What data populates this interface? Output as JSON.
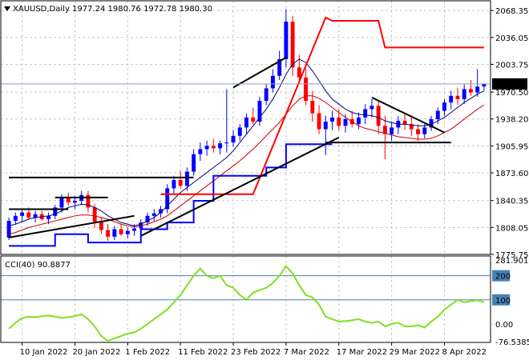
{
  "header": {
    "symbol": "XAUUSD,Daily",
    "ohlc": "1977.24 1980.76 1972.78 1980.30"
  },
  "colors": {
    "background": "#ffffff",
    "grid": "#c8c8c8",
    "bull": "#0000ff",
    "bear": "#ff0000",
    "ma_fast": "#000080",
    "ma_slow": "#cc0000",
    "blue_step": "#0000ff",
    "red_step": "#ff0000",
    "trendline": "#000000",
    "cci_line": "#80e020",
    "cci_levels": "#4682b4",
    "last_price_box": "#000000"
  },
  "chart_data": [
    {
      "type": "candlestick",
      "title": "XAUUSD,Daily",
      "ylim": [
        1775.75,
        2080
      ],
      "price_ticks": [
        "2068.35",
        "2036.05",
        "2003.75",
        "1970.50",
        "1938.20",
        "1905.95",
        "1873.60",
        "1840.35",
        "1808.05",
        "1775.75"
      ],
      "last_price": "1980.30",
      "x_tick_labels": [
        "10 Jan 2022",
        "20 Jan 2022",
        "1 Feb 2022",
        "11 Feb 2022",
        "23 Feb 2022",
        "7 Mar 2022",
        "17 Mar 2022",
        "29 Mar 2022",
        "8 Apr 2022"
      ],
      "x_tick_index": [
        2,
        10,
        18,
        26,
        34,
        42,
        50,
        58,
        66
      ],
      "candles": [
        [
          1796,
          1820,
          1793,
          1816
        ],
        [
          1816,
          1826,
          1812,
          1822
        ],
        [
          1822,
          1830,
          1815,
          1826
        ],
        [
          1826,
          1832,
          1818,
          1820
        ],
        [
          1820,
          1828,
          1814,
          1824
        ],
        [
          1824,
          1828,
          1816,
          1818
        ],
        [
          1818,
          1826,
          1812,
          1822
        ],
        [
          1822,
          1835,
          1818,
          1832
        ],
        [
          1832,
          1848,
          1826,
          1843
        ],
        [
          1843,
          1850,
          1834,
          1838
        ],
        [
          1838,
          1846,
          1830,
          1840
        ],
        [
          1840,
          1852,
          1835,
          1847
        ],
        [
          1847,
          1852,
          1826,
          1832
        ],
        [
          1832,
          1836,
          1808,
          1815
        ],
        [
          1815,
          1820,
          1800,
          1805
        ],
        [
          1805,
          1812,
          1792,
          1797
        ],
        [
          1797,
          1810,
          1793,
          1806
        ],
        [
          1806,
          1812,
          1798,
          1800
        ],
        [
          1800,
          1808,
          1795,
          1804
        ],
        [
          1804,
          1812,
          1798,
          1807
        ],
        [
          1807,
          1818,
          1803,
          1814
        ],
        [
          1814,
          1826,
          1810,
          1822
        ],
        [
          1822,
          1830,
          1816,
          1825
        ],
        [
          1825,
          1834,
          1820,
          1830
        ],
        [
          1830,
          1860,
          1825,
          1855
        ],
        [
          1855,
          1870,
          1848,
          1865
        ],
        [
          1865,
          1876,
          1855,
          1858
        ],
        [
          1858,
          1880,
          1852,
          1875
        ],
        [
          1875,
          1902,
          1870,
          1896
        ],
        [
          1896,
          1910,
          1888,
          1902
        ],
        [
          1902,
          1912,
          1894,
          1906
        ],
        [
          1906,
          1914,
          1898,
          1903
        ],
        [
          1903,
          1912,
          1896,
          1909
        ],
        [
          1909,
          1974,
          1898,
          1910
        ],
        [
          1910,
          1925,
          1905,
          1918
        ],
        [
          1918,
          1932,
          1912,
          1928
        ],
        [
          1928,
          1945,
          1920,
          1940
        ],
        [
          1940,
          1952,
          1932,
          1935
        ],
        [
          1935,
          1965,
          1930,
          1960
        ],
        [
          1960,
          1980,
          1955,
          1975
        ],
        [
          1975,
          1998,
          1970,
          1990
        ],
        [
          1990,
          2020,
          1985,
          2010
        ],
        [
          2010,
          2070,
          2000,
          2055
        ],
        [
          2055,
          2062,
          1990,
          2000
        ],
        [
          2000,
          2015,
          1980,
          1988
        ],
        [
          1988,
          1998,
          1955,
          1960
        ],
        [
          1960,
          1972,
          1935,
          1945
        ],
        [
          1945,
          1955,
          1920,
          1926
        ],
        [
          1926,
          1942,
          1895,
          1935
        ],
        [
          1935,
          1948,
          1925,
          1940
        ],
        [
          1940,
          1950,
          1925,
          1930
        ],
        [
          1930,
          1944,
          1922,
          1938
        ],
        [
          1938,
          1948,
          1928,
          1932
        ],
        [
          1932,
          1946,
          1926,
          1940
        ],
        [
          1940,
          1956,
          1932,
          1950
        ],
        [
          1950,
          1962,
          1940,
          1954
        ],
        [
          1954,
          1960,
          1920,
          1930
        ],
        [
          1930,
          1942,
          1890,
          1920
        ],
        [
          1920,
          1935,
          1912,
          1928
        ],
        [
          1928,
          1942,
          1920,
          1936
        ],
        [
          1936,
          1946,
          1925,
          1932
        ],
        [
          1932,
          1940,
          1918,
          1926
        ],
        [
          1926,
          1932,
          1912,
          1920
        ],
        [
          1920,
          1932,
          1915,
          1928
        ],
        [
          1928,
          1942,
          1924,
          1938
        ],
        [
          1938,
          1952,
          1932,
          1948
        ],
        [
          1948,
          1962,
          1942,
          1958
        ],
        [
          1958,
          1972,
          1950,
          1966
        ],
        [
          1966,
          1976,
          1955,
          1962
        ],
        [
          1962,
          1980,
          1956,
          1974
        ],
        [
          1974,
          1985,
          1966,
          1970
        ],
        [
          1970,
          1998,
          1965,
          1977
        ],
        [
          1977.24,
          1980.76,
          1972.78,
          1980.3
        ]
      ],
      "ma_fast": [
        1810,
        1812,
        1815,
        1818,
        1820,
        1821,
        1822,
        1824,
        1828,
        1832,
        1834,
        1836,
        1835,
        1832,
        1828,
        1822,
        1818,
        1814,
        1812,
        1810,
        1812,
        1816,
        1820,
        1826,
        1834,
        1842,
        1850,
        1856,
        1862,
        1868,
        1874,
        1880,
        1886,
        1892,
        1900,
        1910,
        1920,
        1930,
        1940,
        1950,
        1962,
        1976,
        1992,
        2004,
        2010,
        2006,
        1996,
        1984,
        1972,
        1962,
        1956,
        1950,
        1946,
        1944,
        1943,
        1942,
        1940,
        1936,
        1934,
        1932,
        1932,
        1931,
        1930,
        1930,
        1932,
        1936,
        1940,
        1946,
        1952,
        1958,
        1963,
        1968,
        1972
      ],
      "ma_slow": [
        1800,
        1802,
        1805,
        1808,
        1810,
        1812,
        1814,
        1816,
        1818,
        1820,
        1822,
        1823,
        1823,
        1822,
        1820,
        1818,
        1815,
        1812,
        1810,
        1809,
        1810,
        1812,
        1815,
        1818,
        1822,
        1828,
        1834,
        1840,
        1846,
        1852,
        1858,
        1864,
        1870,
        1876,
        1882,
        1888,
        1895,
        1902,
        1910,
        1918,
        1926,
        1934,
        1944,
        1954,
        1962,
        1966,
        1966,
        1963,
        1958,
        1952,
        1946,
        1940,
        1935,
        1930,
        1927,
        1925,
        1923,
        1921,
        1919,
        1917,
        1916,
        1915,
        1914,
        1914,
        1915,
        1918,
        1922,
        1926,
        1932,
        1938,
        1944,
        1950,
        1955
      ],
      "blue_step": [
        [
          0,
          1786
        ],
        [
          7,
          1786
        ],
        [
          7,
          1800
        ],
        [
          12,
          1800
        ],
        [
          12,
          1790
        ],
        [
          20,
          1790
        ],
        [
          20,
          1806
        ],
        [
          24,
          1806
        ],
        [
          24,
          1814
        ],
        [
          28,
          1814
        ],
        [
          28,
          1840
        ],
        [
          31,
          1840
        ],
        [
          31,
          1870
        ],
        [
          39,
          1870
        ],
        [
          39,
          1880
        ],
        [
          42,
          1880
        ],
        [
          42,
          1908
        ],
        [
          49,
          1908
        ]
      ],
      "red_step": [
        [
          23,
          1848
        ],
        [
          37,
          1848
        ],
        [
          48,
          2060
        ],
        [
          49,
          2056
        ],
        [
          56,
          2056
        ],
        [
          57,
          2024
        ],
        [
          72,
          2024
        ]
      ],
      "trendlines": [
        [
          [
            0,
            1796
          ],
          [
            19,
            1822
          ]
        ],
        [
          [
            20,
            1798
          ],
          [
            50,
            1916
          ]
        ],
        [
          [
            34,
            1976
          ],
          [
            42,
            2012
          ]
        ],
        [
          [
            55,
            1964
          ],
          [
            66,
            1922
          ]
        ],
        [
          [
            48,
            1910
          ],
          [
            67,
            1910
          ]
        ],
        [
          [
            0,
            1868
          ],
          [
            28,
            1868
          ]
        ],
        [
          [
            0,
            1830
          ],
          [
            9,
            1830
          ]
        ],
        [
          [
            7,
            1844
          ],
          [
            15,
            1844
          ]
        ]
      ]
    },
    {
      "type": "line",
      "title": "CCI(40) 90.8877",
      "ylim": [
        -76.5385,
        281.9018
      ],
      "tick_labels": [
        "281.9018",
        "200",
        "100",
        "0.00",
        "-76.5385"
      ],
      "levels": [
        200,
        100
      ],
      "values": [
        -20,
        5,
        25,
        30,
        28,
        32,
        35,
        30,
        25,
        28,
        32,
        40,
        20,
        -10,
        -50,
        -70,
        -60,
        -50,
        -40,
        -35,
        -20,
        0,
        20,
        40,
        60,
        90,
        120,
        160,
        200,
        230,
        200,
        190,
        200,
        160,
        150,
        120,
        100,
        130,
        140,
        150,
        170,
        200,
        240,
        210,
        160,
        120,
        110,
        80,
        30,
        20,
        10,
        12,
        15,
        20,
        10,
        5,
        10,
        -10,
        0,
        5,
        -10,
        -10,
        -5,
        -15,
        10,
        30,
        60,
        80,
        100,
        90,
        95,
        98,
        90.89
      ]
    }
  ]
}
